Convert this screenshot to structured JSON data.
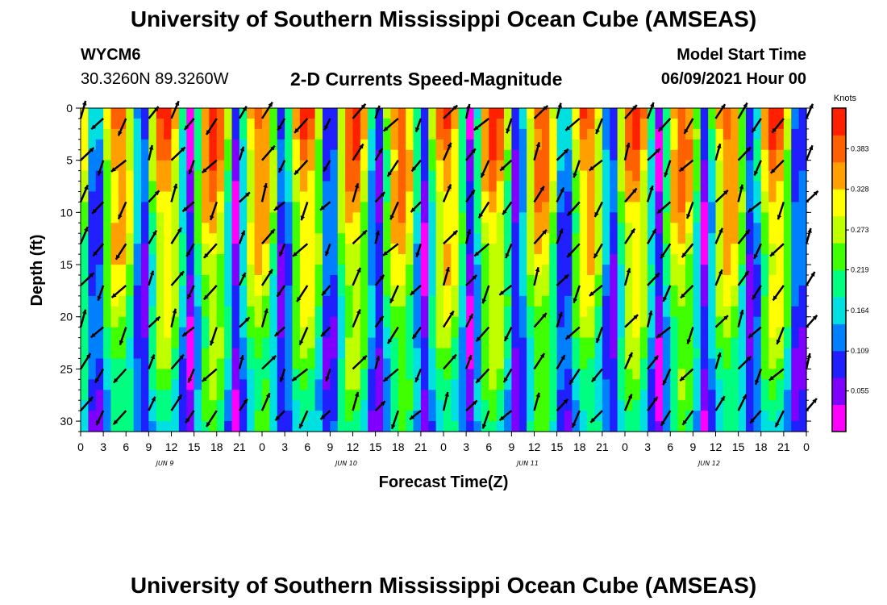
{
  "header": {
    "title_top": "University of Southern Mississippi Ocean Cube (AMSEAS)",
    "title_bottom": "University of Southern Mississippi Ocean Cube (AMSEAS)",
    "station_id": "WYCM6",
    "station_coords": "30.3260N  89.3260W",
    "plot_title": "2-D Currents Speed-Magnitude",
    "model_start_label": "Model Start Time",
    "model_start_value": "06/09/2021 Hour 00"
  },
  "chart_data": {
    "type": "heatmap",
    "title": "2-D Currents Speed-Magnitude",
    "xlabel": "Forecast Time(Z)",
    "ylabel": "Depth (ft)",
    "x_range_hours": [
      0,
      96
    ],
    "ylim": [
      0,
      31
    ],
    "y_inverted": true,
    "y_ticks": [
      0,
      5,
      10,
      15,
      20,
      25,
      30
    ],
    "x_tick_labels": [
      "0",
      "3",
      "6",
      "9",
      "12",
      "15",
      "18",
      "21",
      "0",
      "3",
      "6",
      "9",
      "12",
      "15",
      "18",
      "21",
      "0",
      "3",
      "6",
      "9",
      "12",
      "15",
      "18",
      "21",
      "0",
      "3",
      "6",
      "9",
      "12",
      "15",
      "18",
      "21",
      "0"
    ],
    "day_labels": [
      "JUN 9",
      "JUN 10",
      "JUN 11",
      "JUN 12"
    ],
    "colorbar": {
      "unit": "Knots",
      "ticks": [
        "0.055",
        "0.109",
        "0.164",
        "0.219",
        "0.273",
        "0.328",
        "0.383"
      ],
      "range": [
        0.0,
        0.438
      ],
      "colors": [
        "#ff00ff",
        "#8000ff",
        "#2020ff",
        "#0080ff",
        "#00e0e0",
        "#00ff80",
        "#40ff00",
        "#c0ff00",
        "#ffff00",
        "#ffa000",
        "#ff6000",
        "#ff2000"
      ]
    },
    "colormap_note": "values are speed in knots"
  }
}
